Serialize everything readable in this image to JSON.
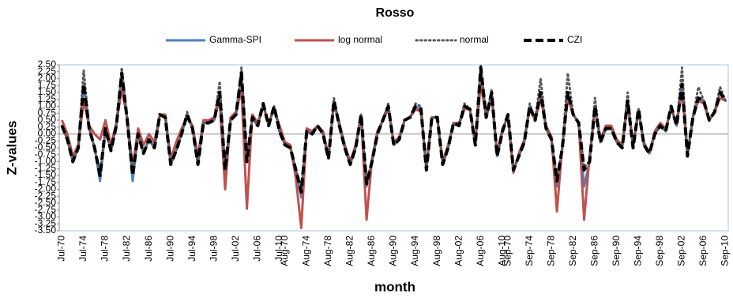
{
  "chart_data": {
    "type": "line",
    "title": "Rosso",
    "xlabel": "month",
    "ylabel": "Z-values",
    "categories": [
      "Jul-70",
      null,
      null,
      null,
      "Jul-74",
      null,
      null,
      null,
      "Jul-78",
      null,
      null,
      null,
      "Jul-82",
      null,
      null,
      null,
      "Jul-86",
      null,
      null,
      null,
      "Jul-90",
      null,
      null,
      null,
      "Jul-94",
      null,
      null,
      null,
      "Jul-98",
      null,
      null,
      null,
      "Jul-02",
      null,
      null,
      null,
      "Jul-06",
      null,
      null,
      null,
      "Jul-10",
      "Aug-70",
      null,
      null,
      null,
      "Aug-74",
      null,
      null,
      null,
      "Aug-78",
      null,
      null,
      null,
      "Aug-82",
      null,
      null,
      null,
      "Aug-86",
      null,
      null,
      null,
      "Aug-90",
      null,
      null,
      null,
      "Aug-94",
      null,
      null,
      null,
      "Aug-98",
      null,
      null,
      null,
      "Aug-02",
      null,
      null,
      null,
      "Aug-06",
      null,
      null,
      null,
      "Aug-10",
      "Sep-70",
      null,
      null,
      null,
      "Sep-74",
      null,
      null,
      null,
      "Sep-78",
      null,
      null,
      null,
      "Sep-82",
      null,
      null,
      null,
      "Sep-86",
      null,
      null,
      null,
      "Sep-90",
      null,
      null,
      null,
      "Sep-94",
      null,
      null,
      null,
      "Sep-98",
      null,
      null,
      null,
      "Sep-02",
      null,
      null,
      null,
      "Sep-06",
      null,
      null,
      null,
      "Sep-10"
    ],
    "series": [
      {
        "name": "Gamma-SPI",
        "color": "#4f81bd",
        "style": "solid",
        "width": 3,
        "values": [
          0.3,
          -0.2,
          -1.0,
          -0.5,
          1.8,
          0.2,
          -0.5,
          -1.7,
          0.2,
          -0.6,
          0.3,
          2.2,
          0.5,
          -1.7,
          0.0,
          -0.7,
          -0.2,
          -0.5,
          0.7,
          0.6,
          -1.1,
          -0.6,
          0.0,
          0.7,
          0.2,
          -1.1,
          0.4,
          0.4,
          0.5,
          1.5,
          -1.3,
          0.5,
          0.7,
          2.2,
          -1.0,
          0.6,
          0.3,
          1.1,
          0.3,
          1.0,
          0.1,
          -0.4,
          -0.5,
          -1.3,
          -2.3,
          0.1,
          0.0,
          0.3,
          0.0,
          -0.9,
          1.2,
          0.3,
          -0.5,
          -1.1,
          -0.5,
          0.7,
          -1.9,
          -1.0,
          0.0,
          0.5,
          1.0,
          -0.4,
          -0.2,
          0.5,
          0.6,
          1.0,
          0.9,
          -1.3,
          0.6,
          0.6,
          -1.1,
          -0.5,
          0.4,
          0.3,
          1.0,
          0.9,
          -0.4,
          2.4,
          0.6,
          1.5,
          -0.8,
          0.1,
          0.7,
          -1.3,
          -0.8,
          -0.3,
          1.0,
          0.5,
          1.5,
          0.2,
          -0.2,
          -1.9,
          -0.5,
          1.5,
          0.7,
          0.4,
          -1.9,
          -1.0,
          1.0,
          -0.3,
          0.2,
          0.2,
          -0.3,
          -0.5,
          1.2,
          -0.5,
          0.9,
          -0.4,
          -0.7,
          0.0,
          0.3,
          0.1,
          1.0,
          0.3,
          1.8,
          -0.8,
          0.6,
          1.3,
          1.2,
          0.5,
          0.8,
          1.5,
          1.2
        ]
      },
      {
        "name": "log normal",
        "color": "#c0504d",
        "style": "solid",
        "width": 3,
        "values": [
          0.5,
          0.0,
          -0.8,
          -0.4,
          1.2,
          0.3,
          0.0,
          -0.2,
          0.5,
          -0.4,
          0.4,
          1.6,
          0.6,
          -1.2,
          0.2,
          -0.4,
          0.0,
          -0.3,
          0.7,
          0.7,
          -0.9,
          -0.3,
          0.2,
          0.6,
          0.3,
          -0.8,
          0.5,
          0.5,
          0.6,
          1.2,
          -2.0,
          0.6,
          0.8,
          1.6,
          -2.7,
          0.7,
          0.4,
          1.0,
          0.4,
          0.9,
          0.3,
          -0.3,
          -0.4,
          -1.6,
          -3.4,
          0.2,
          0.1,
          0.3,
          0.1,
          -0.8,
          1.1,
          0.4,
          -0.4,
          -1.0,
          -0.4,
          0.7,
          -3.1,
          -0.9,
          0.1,
          0.5,
          0.9,
          -0.3,
          -0.1,
          0.5,
          0.6,
          0.9,
          0.8,
          -1.2,
          0.6,
          0.6,
          -1.0,
          -0.4,
          0.4,
          0.4,
          0.9,
          0.9,
          -0.3,
          1.8,
          0.6,
          1.3,
          -0.7,
          0.2,
          0.6,
          -1.4,
          -0.7,
          -0.2,
          0.9,
          0.5,
          1.3,
          0.3,
          -0.1,
          -2.8,
          -0.4,
          1.3,
          0.7,
          0.4,
          -3.1,
          -0.8,
          0.9,
          -0.2,
          0.3,
          0.3,
          -0.2,
          -0.4,
          1.1,
          -0.4,
          0.8,
          -0.3,
          -0.7,
          0.1,
          0.4,
          0.2,
          0.9,
          0.4,
          1.5,
          -0.7,
          0.6,
          1.2,
          1.1,
          0.5,
          0.8,
          1.3,
          1.2
        ]
      },
      {
        "name": "normal",
        "color": "#595959",
        "style": "dotted",
        "width": 3,
        "values": [
          0.3,
          -0.2,
          -1.0,
          -0.5,
          2.3,
          0.2,
          -0.5,
          -1.4,
          0.2,
          -0.6,
          0.3,
          2.4,
          0.5,
          -1.4,
          0.0,
          -0.7,
          -0.2,
          -0.5,
          0.7,
          0.6,
          -1.1,
          -0.6,
          0.0,
          0.8,
          0.2,
          -1.1,
          0.4,
          0.4,
          0.5,
          1.9,
          -1.3,
          0.5,
          0.7,
          2.4,
          -0.9,
          0.6,
          0.3,
          1.1,
          0.3,
          1.0,
          0.1,
          -0.4,
          -0.5,
          -1.3,
          -1.9,
          0.1,
          0.0,
          0.3,
          0.0,
          -0.9,
          1.3,
          0.3,
          -0.5,
          -1.1,
          -0.5,
          0.7,
          -1.7,
          -1.0,
          0.0,
          0.5,
          1.1,
          -0.4,
          -0.2,
          0.5,
          0.6,
          1.1,
          1.0,
          -1.3,
          0.6,
          0.6,
          -1.1,
          -0.5,
          0.4,
          0.3,
          1.1,
          0.9,
          -0.4,
          2.5,
          0.6,
          1.6,
          -0.8,
          0.1,
          0.7,
          -1.3,
          -0.8,
          -0.3,
          1.1,
          0.5,
          2.0,
          0.2,
          -0.2,
          -1.6,
          -0.5,
          2.2,
          0.7,
          0.4,
          -1.2,
          -1.0,
          1.3,
          -0.3,
          0.2,
          0.2,
          -0.3,
          -0.5,
          1.5,
          -0.5,
          0.9,
          -0.4,
          -0.7,
          0.0,
          0.3,
          0.1,
          1.0,
          0.3,
          2.4,
          -0.8,
          0.6,
          1.7,
          1.2,
          0.5,
          0.8,
          1.7,
          1.2
        ]
      },
      {
        "name": "CZI",
        "color": "#000000",
        "style": "dashed",
        "width": 4,
        "values": [
          0.3,
          -0.2,
          -1.0,
          -0.5,
          1.8,
          0.2,
          -0.5,
          -1.5,
          0.2,
          -0.6,
          0.3,
          2.2,
          0.5,
          -1.5,
          0.0,
          -0.7,
          -0.2,
          -0.5,
          0.7,
          0.6,
          -1.1,
          -0.6,
          0.0,
          0.7,
          0.2,
          -1.1,
          0.4,
          0.4,
          0.5,
          1.5,
          -1.3,
          0.5,
          0.7,
          2.2,
          -1.0,
          0.6,
          0.3,
          1.1,
          0.3,
          1.0,
          0.1,
          -0.4,
          -0.5,
          -1.3,
          -2.1,
          0.1,
          0.0,
          0.3,
          0.0,
          -0.9,
          1.2,
          0.3,
          -0.5,
          -1.1,
          -0.5,
          0.7,
          -1.8,
          -1.0,
          0.0,
          0.5,
          1.0,
          -0.4,
          -0.2,
          0.5,
          0.6,
          1.0,
          0.9,
          -1.3,
          0.6,
          0.6,
          -1.1,
          -0.5,
          0.4,
          0.3,
          1.0,
          0.9,
          -0.4,
          2.4,
          0.6,
          1.5,
          -0.8,
          0.1,
          0.7,
          -1.3,
          -0.8,
          -0.3,
          1.0,
          0.5,
          1.5,
          0.2,
          -0.2,
          -1.7,
          -0.5,
          1.5,
          0.7,
          0.4,
          -1.3,
          -1.0,
          1.0,
          -0.3,
          0.2,
          0.2,
          -0.3,
          -0.5,
          1.2,
          -0.5,
          0.9,
          -0.4,
          -0.7,
          0.0,
          0.3,
          0.1,
          1.0,
          0.3,
          1.8,
          -0.8,
          0.6,
          1.3,
          1.2,
          0.5,
          0.8,
          1.5,
          1.2
        ]
      }
    ],
    "ylim": [
      -3.5,
      2.5
    ],
    "yticks": [
      {
        "value": -3.5,
        "label": "-3.50"
      },
      {
        "value": -3.25,
        "label": "-3.25"
      },
      {
        "value": -3,
        "label": "-3.00"
      },
      {
        "value": -2.75,
        "label": "-2.75"
      },
      {
        "value": -2.5,
        "label": "-2.50"
      },
      {
        "value": -2.25,
        "label": "-2.25"
      },
      {
        "value": -2,
        "label": "-2.00"
      },
      {
        "value": -1.75,
        "label": "-1.75"
      },
      {
        "value": -1.5,
        "label": "-1.50"
      },
      {
        "value": -1.25,
        "label": "-1.25"
      },
      {
        "value": -1,
        "label": "-1.00"
      },
      {
        "value": -0.75,
        "label": "-0.75"
      },
      {
        "value": -0.5,
        "label": "-0.50"
      },
      {
        "value": -0.25,
        "label": "-0.25"
      },
      {
        "value": 0,
        "label": "0.00"
      },
      {
        "value": 0.25,
        "label": "0.25"
      },
      {
        "value": 0.5,
        "label": "0.50"
      },
      {
        "value": 0.75,
        "label": "0.75"
      },
      {
        "value": 1,
        "label": "1.00"
      },
      {
        "value": 1.25,
        "label": "1.25"
      },
      {
        "value": 1.5,
        "label": "1.50"
      },
      {
        "value": 1.75,
        "label": "1.75"
      },
      {
        "value": 2,
        "label": "2.00"
      },
      {
        "value": 2.25,
        "label": "2.25"
      },
      {
        "value": 2.5,
        "label": "2.50"
      }
    ],
    "legend": "top"
  }
}
